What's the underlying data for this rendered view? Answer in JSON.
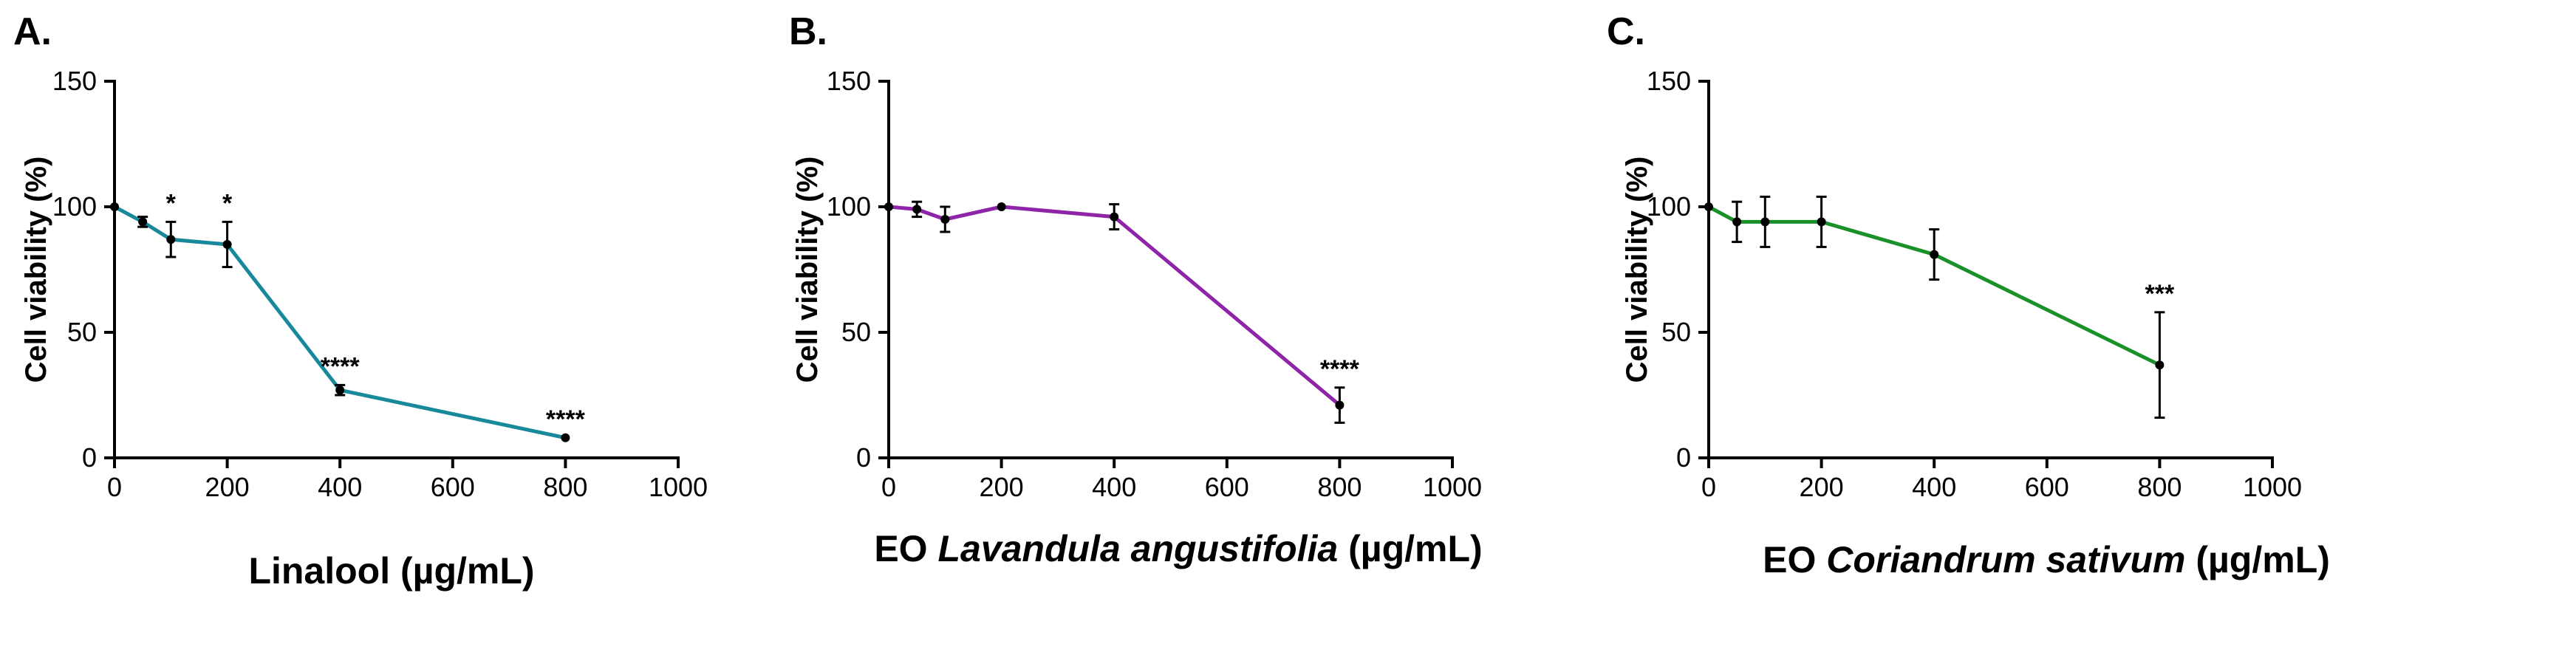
{
  "colors": {
    "linalool": "#18899a",
    "lavandula": "#8e25a8",
    "coriandrum": "#199128"
  },
  "chart_data": [
    {
      "type": "line",
      "panel_label": "A.",
      "xlabel_parts": [
        {
          "text": "Linalool (µg/mL)",
          "italic": false
        }
      ],
      "ylabel": "Cell viability (%)",
      "xlim": [
        0,
        1000
      ],
      "ylim": [
        0,
        150
      ],
      "xticks": [
        "0",
        "200",
        "400",
        "600",
        "800",
        "1000"
      ],
      "yticks": [
        "0",
        "50",
        "100",
        "150"
      ],
      "color_key": "linalool",
      "series": [
        {
          "x": [
            0,
            50,
            100,
            200,
            400,
            800
          ],
          "y": [
            100,
            94,
            87,
            85,
            27,
            8
          ],
          "err": [
            0,
            2,
            7,
            9,
            2,
            0
          ],
          "annotations": [
            "",
            "",
            "*",
            "*",
            "****",
            "****"
          ]
        }
      ]
    },
    {
      "type": "line",
      "panel_label": "B.",
      "xlabel_parts": [
        {
          "text": "EO ",
          "italic": false
        },
        {
          "text": "Lavandula angustifolia",
          "italic": true
        },
        {
          "text": " (µg/mL)",
          "italic": false
        }
      ],
      "ylabel": "Cell viability (%)",
      "xlim": [
        0,
        1000
      ],
      "ylim": [
        0,
        150
      ],
      "xticks": [
        "0",
        "200",
        "400",
        "600",
        "800",
        "1000"
      ],
      "yticks": [
        "0",
        "50",
        "100",
        "150"
      ],
      "color_key": "lavandula",
      "series": [
        {
          "x": [
            0,
            50,
            100,
            200,
            400,
            800
          ],
          "y": [
            100,
            99,
            95,
            100,
            96,
            21
          ],
          "err": [
            0,
            3,
            5,
            0,
            5,
            7
          ],
          "annotations": [
            "",
            "",
            "",
            "",
            "",
            "****"
          ]
        }
      ]
    },
    {
      "type": "line",
      "panel_label": "C.",
      "xlabel_parts": [
        {
          "text": "EO ",
          "italic": false
        },
        {
          "text": "Coriandrum sativum",
          "italic": true
        },
        {
          "text": " (µg/mL)",
          "italic": false
        }
      ],
      "ylabel": "Cell viability (%)",
      "xlim": [
        0,
        1000
      ],
      "ylim": [
        0,
        150
      ],
      "xticks": [
        "0",
        "200",
        "400",
        "600",
        "800",
        "1000"
      ],
      "yticks": [
        "0",
        "50",
        "100",
        "150"
      ],
      "color_key": "coriandrum",
      "series": [
        {
          "x": [
            0,
            50,
            100,
            200,
            400,
            800
          ],
          "y": [
            100,
            94,
            94,
            94,
            81,
            37
          ],
          "err": [
            0,
            8,
            10,
            10,
            10,
            21
          ],
          "annotations": [
            "",
            "",
            "",
            "",
            "",
            "***"
          ]
        }
      ]
    }
  ]
}
